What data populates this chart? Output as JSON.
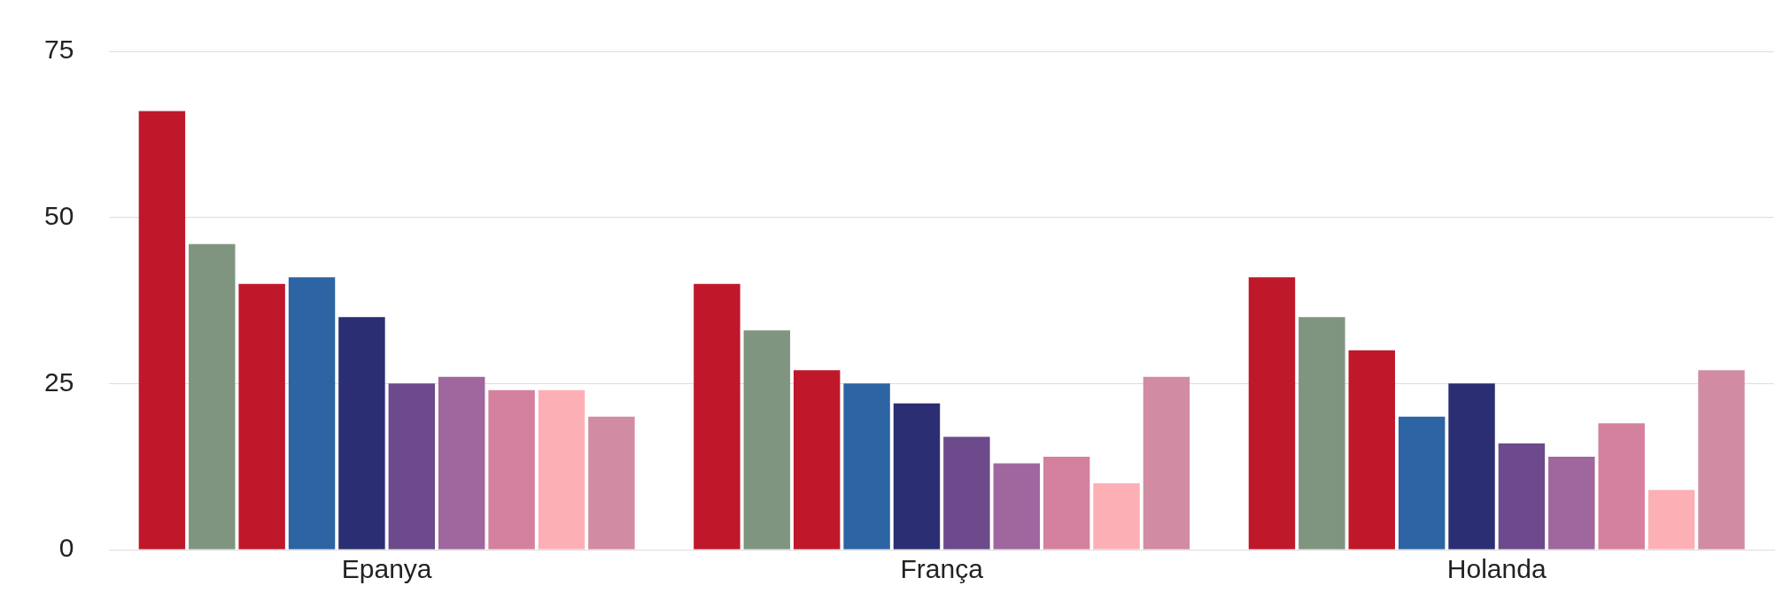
{
  "chart_data": {
    "type": "bar",
    "categories": [
      "Epanya",
      "França",
      "Holanda"
    ],
    "series": [
      {
        "color": "#c0182b",
        "values": [
          66,
          40,
          41
        ]
      },
      {
        "color": "#7f9580",
        "values": [
          46,
          33,
          35
        ]
      },
      {
        "color": "#c0182b",
        "values": [
          40,
          27,
          30
        ]
      },
      {
        "color": "#2c64a4",
        "values": [
          41,
          25,
          20
        ]
      },
      {
        "color": "#2b2e72",
        "values": [
          35,
          22,
          25
        ]
      },
      {
        "color": "#6c4a8c",
        "values": [
          25,
          17,
          16
        ]
      },
      {
        "color": "#a0669e",
        "values": [
          26,
          13,
          14
        ]
      },
      {
        "color": "#d4819f",
        "values": [
          24,
          14,
          19
        ]
      },
      {
        "color": "#fcb0b5",
        "values": [
          24,
          10,
          9
        ]
      },
      {
        "color": "#d18ba3",
        "values": [
          20,
          26,
          27
        ]
      }
    ],
    "ylim": [
      0,
      75
    ],
    "yticks": [
      0,
      25,
      50,
      75
    ],
    "grid": "y",
    "legend": false
  }
}
